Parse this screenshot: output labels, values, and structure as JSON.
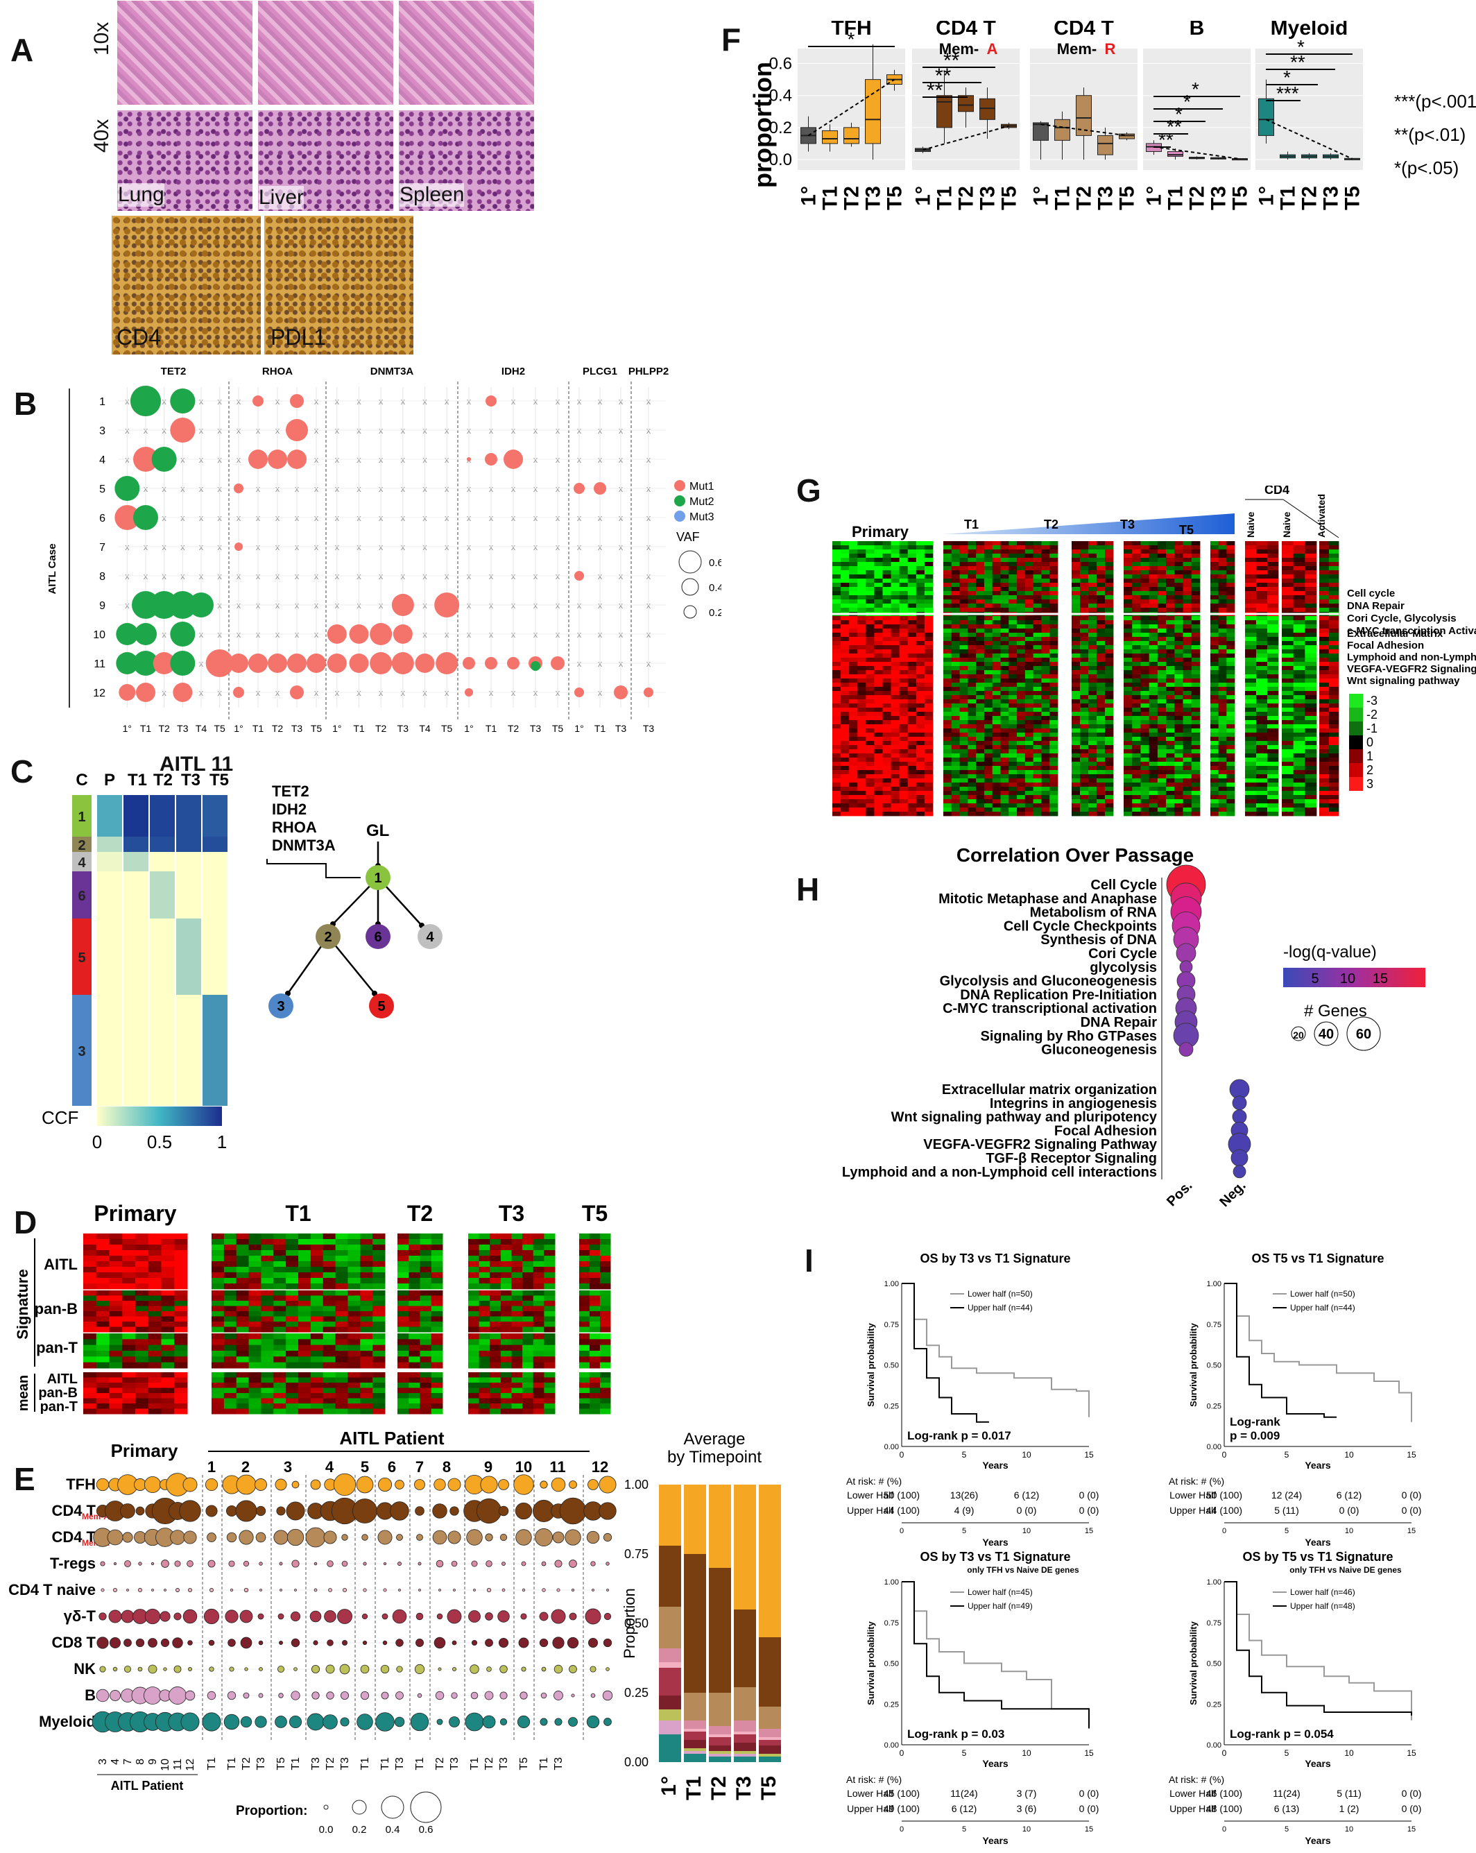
{
  "panels": {
    "A": {
      "letter": "A",
      "mag_top": "10x",
      "mag_bottom": "40x",
      "tissues": [
        "Lung",
        "Liver",
        "Spleen"
      ],
      "ihc": [
        "CD4",
        "PDL1"
      ]
    },
    "B": {
      "letter": "B",
      "genes": [
        "TET2",
        "RHOA",
        "DNMT3A",
        "IDH2",
        "PLCG1",
        "PHLPP2"
      ],
      "ylabel": "AITL Case",
      "cases": [
        "1",
        "3",
        "4",
        "5",
        "6",
        "7",
        "8",
        "9",
        "10",
        "11",
        "12"
      ],
      "xticks_tet2": [
        "1°",
        "T1",
        "T2",
        "T3",
        "T4",
        "T5"
      ],
      "xticks_rhoa": [
        "1°",
        "T1",
        "T2",
        "T3",
        "T5"
      ],
      "xticks_dnmt3a": [
        "1°",
        "T1",
        "T2",
        "T3",
        "T4",
        "T5"
      ],
      "xticks_idh2": [
        "1°",
        "T1",
        "T2",
        "T3",
        "T5"
      ],
      "xticks_plcg1": [
        "1°",
        "T1",
        "T3"
      ],
      "xticks_phlpp2": [
        "T3"
      ],
      "legend": {
        "mut": [
          "Mut1",
          "Mut2",
          "Mut3"
        ],
        "mut_colors": [
          "#f4736b",
          "#1ea64a",
          "#6fa0e8"
        ],
        "vaf_title": "VAF",
        "vaf": [
          "0.6",
          "0.4",
          "0.2"
        ]
      }
    },
    "C": {
      "letter": "C",
      "title": "AITL 11",
      "cols": [
        "C",
        "P",
        "T1",
        "T2",
        "T3",
        "T5"
      ],
      "clusters": [
        "1",
        "2",
        "4",
        "6",
        "5",
        "3"
      ],
      "genes": [
        "TET2",
        "IDH2",
        "RHOA",
        "DNMT3A"
      ],
      "root": "GL",
      "ccf_label": "CCF",
      "ccf_ticks": [
        "0",
        "0.5",
        "1"
      ],
      "tree_nodes": [
        {
          "id": "1",
          "color": "#8ac43f"
        },
        {
          "id": "2",
          "color": "#8f8555"
        },
        {
          "id": "6",
          "color": "#6a3496"
        },
        {
          "id": "4",
          "color": "#bfbfbf"
        },
        {
          "id": "3",
          "color": "#4e86c8"
        },
        {
          "id": "5",
          "color": "#e41f1f"
        }
      ]
    },
    "D": {
      "letter": "D",
      "groups": [
        "Primary",
        "T1",
        "T2",
        "T3",
        "T5"
      ],
      "sig_label": "Signature",
      "rows": [
        "AITL",
        "pan-B",
        "pan-T"
      ],
      "mean_label": "mean",
      "mean_rows": [
        "AITL",
        "pan-B",
        "pan-T"
      ]
    },
    "E": {
      "letter": "E",
      "primary": "Primary",
      "patient_title": "AITL Patient",
      "patients": [
        "1",
        "2",
        "3",
        "4",
        "5",
        "6",
        "7",
        "8",
        "9",
        "10",
        "11",
        "12"
      ],
      "cell_types": [
        "TFH",
        "CD4 T",
        "CD4 T",
        "T-regs",
        "CD4 T naive",
        "γδ-T",
        "CD8 T",
        "NK",
        "B",
        "Myeloid"
      ],
      "subs": [
        "",
        "Mem-A",
        "",
        "Mem-R"
      ],
      "primary_ticks": [
        "3",
        "4",
        "7",
        "8",
        "9",
        "10",
        "11",
        "12"
      ],
      "primary_foot": "AITL Patient",
      "patient_ticks": [
        "T1",
        "T1",
        "T2",
        "T3",
        "T5",
        "T1",
        "T3",
        "T2",
        "T3",
        "T1",
        "T1",
        "T3",
        "T1",
        "T2",
        "T3",
        "T1",
        "T2",
        "T3",
        "T5",
        "T1",
        "T3"
      ],
      "prop_label": "Proportion:",
      "prop_ticks": [
        "0.0",
        "0.2",
        "0.4",
        "0.6"
      ],
      "bar_title1": "Average",
      "bar_title2": "by Timepoint",
      "bar_ylabel": "Proportion",
      "bar_yticks": [
        "0.00",
        "0.25",
        "0.50",
        "0.75",
        "1.00"
      ],
      "bar_xticks": [
        "1°",
        "T1",
        "T2",
        "T3",
        "T5"
      ],
      "colors": [
        "#f5a623",
        "#7a3f10",
        "#b78a5a",
        "#d98ba3",
        "#f2b0c0",
        "#a8344a",
        "#7b1f2a",
        "#bcc15a",
        "#d9a3c9",
        "#1d8680"
      ]
    },
    "F": {
      "letter": "F",
      "ylabel": "proportion",
      "yticks": [
        "0.0",
        "0.2",
        "0.4",
        "0.6"
      ],
      "facets": [
        {
          "title": "TFH",
          "sub": ""
        },
        {
          "title": "CD4 T",
          "sub": "Mem-",
          "subc": "A"
        },
        {
          "title": "CD4 T",
          "sub": "Mem-",
          "subc": "R"
        },
        {
          "title": "B",
          "sub": ""
        },
        {
          "title": "Myeloid",
          "sub": ""
        }
      ],
      "xticks": [
        "1°",
        "T1",
        "T2",
        "T3",
        "T5"
      ],
      "sig": [
        "***(p<.001)",
        "**(p<.01)",
        "*(p<.05)"
      ],
      "stars_tfh": [
        "*"
      ],
      "stars_cd4a": [
        "**",
        "**",
        "**"
      ],
      "stars_b": [
        "*",
        "*",
        "*",
        "**",
        "**"
      ],
      "stars_my": [
        "*",
        "**",
        "*",
        "***"
      ]
    },
    "G": {
      "letter": "G",
      "groups": [
        "Primary",
        "T1",
        "T2",
        "T3",
        "T5"
      ],
      "cd4": "CD4",
      "cd4_cols": [
        "Naive",
        "Naive",
        "Activated"
      ],
      "terms_up": [
        "Cell cycle",
        "DNA Repair",
        "Cori Cycle, Glycolysis",
        "c-MYC transcription Activation"
      ],
      "terms_down": [
        "Extracellular Matrix",
        "Focal Adhesion",
        "Lymphoid and non-Lymphoid Cells",
        "VEGFA-VEGFR2 Signaling Pathway",
        "Wnt signaling pathway"
      ],
      "scale": [
        "-3",
        "-2",
        "-1",
        "0",
        "1",
        "2",
        "3"
      ]
    },
    "H": {
      "letter": "H",
      "title": "Correlation Over Passage",
      "pos_terms": [
        "Cell Cycle",
        "Mitotic Metaphase and Anaphase",
        "Metabolism of RNA",
        "Cell Cycle Checkpoints",
        "Synthesis of DNA",
        "Cori Cycle",
        "glycolysis",
        "Glycolysis and Gluconeogenesis",
        "DNA Replication Pre-Initiation",
        "C-MYC transcriptional activation",
        "DNA Repair",
        "Signaling by Rho GTPases",
        "Gluconeogenesis"
      ],
      "neg_terms": [
        "Extracellular matrix organization",
        "Integrins in angiogenesis",
        "Wnt signaling pathway and pluripotency",
        "Focal Adhesion",
        "VEGFA-VEGFR2 Signaling Pathway",
        "TGF-β Receptor Signaling",
        "Lymphoid and a non-Lymphoid cell interactions"
      ],
      "xticks": [
        "Pos.",
        "Neg."
      ],
      "color_title": "-log(q-value)",
      "color_ticks": [
        "5",
        "10",
        "15"
      ],
      "size_title": "# Genes",
      "size_ticks": [
        "20",
        "40",
        "60"
      ]
    },
    "I": {
      "letter": "I",
      "plots": [
        {
          "title": "OS by T3 vs T1 Signature",
          "sub": "",
          "lower": "Lower half (n=50)",
          "upper": "Upper half (n=44)",
          "p": "Log-rank p = 0.017",
          "risk_lower": [
            "50 (100)",
            "13(26)",
            "6 (12)",
            "0 (0)"
          ],
          "risk_upper": [
            "44 (100)",
            "4 (9)",
            "0 (0)",
            "0 (0)"
          ]
        },
        {
          "title": "OS T5 vs T1 Signature",
          "sub": "",
          "lower": "Lower half (n=50)",
          "upper": "Upper half (n=44)",
          "p": "Log-rank\np = 0.009",
          "risk_lower": [
            "50 (100)",
            "12 (24)",
            "6 (12)",
            "0 (0)"
          ],
          "risk_upper": [
            "44 (100)",
            "5 (11)",
            "0 (0)",
            "0 (0)"
          ]
        },
        {
          "title": "OS by T3 vs T1 Signature",
          "sub": "only TFH vs Naive DE genes",
          "lower": "Lower half (n=45)",
          "upper": "Upper half (n=49)",
          "p": "Log-rank p = 0.03",
          "risk_lower": [
            "45 (100)",
            "11(24)",
            "3 (7)",
            "0 (0)"
          ],
          "risk_upper": [
            "49 (100)",
            "6 (12)",
            "3 (6)",
            "0 (0)"
          ]
        },
        {
          "title": "OS by T5 vs T1 Signature",
          "sub": "only TFH vs Naive DE genes",
          "lower": "Lower half (n=46)",
          "upper": "Upper half (n=48)",
          "p": "Log-rank p = 0.054",
          "risk_lower": [
            "46 (100)",
            "11(24)",
            "5 (11)",
            "0 (0)"
          ],
          "risk_upper": [
            "48 (100)",
            "6 (13)",
            "1 (2)",
            "0 (0)"
          ]
        }
      ],
      "ylabel": "Survival probability",
      "xlabel": "Years",
      "yticks": [
        "0.00",
        "0.25",
        "0.50",
        "0.75",
        "1.00"
      ],
      "xticks": [
        "0",
        "5",
        "10",
        "15"
      ],
      "risk_title": "At risk: # (%)",
      "risk_rows": [
        "Lower Half",
        "Upper Half"
      ]
    }
  }
}
